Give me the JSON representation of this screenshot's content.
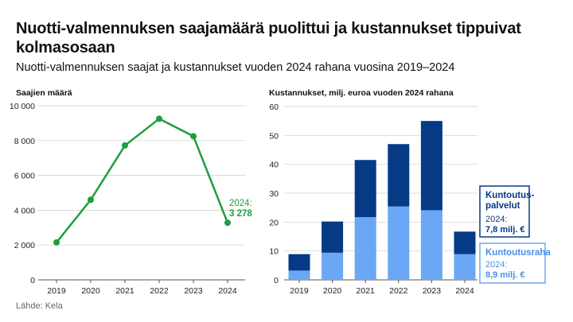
{
  "header": {
    "title": "Nuotti-valmennuksen saajamäärä puolittui ja kustannukset tippuivat kolmasosaan",
    "subtitle": "Nuotti-valmennuksen saajat ja kustannukset vuoden 2024 rahana vuosina 2019–2024"
  },
  "footer": {
    "source": "Lähde: Kela"
  },
  "colors": {
    "line": "#1f9e3e",
    "dark_bar": "#063a87",
    "light_bar": "#6aa7f5",
    "axis": "#555555",
    "grid": "#cccccc"
  },
  "chart_data": [
    {
      "type": "line",
      "ylabel": "Saajien määrä",
      "x": [
        "2019",
        "2020",
        "2021",
        "2022",
        "2023",
        "2024"
      ],
      "series": [
        {
          "values": [
            2150,
            4600,
            7720,
            9250,
            8250,
            3278
          ]
        }
      ],
      "ylim": [
        0,
        10000
      ],
      "yticks": [
        0,
        2000,
        4000,
        6000,
        8000,
        10000
      ],
      "ytick_labels": [
        "0",
        "2 000",
        "4 000",
        "6 000",
        "8 000",
        "10 000"
      ],
      "annotation": {
        "label": "2024:",
        "value": "3 278"
      },
      "grid": true
    },
    {
      "type": "bar",
      "stacked": true,
      "ylabel": "Kustannukset, milj. euroa vuoden 2024 rahana",
      "categories": [
        "2019",
        "2020",
        "2021",
        "2022",
        "2023",
        "2024"
      ],
      "series": [
        {
          "name": "Kuntoutusraha",
          "values": [
            3.2,
            9.4,
            21.7,
            25.4,
            24.1,
            8.9
          ]
        },
        {
          "name": "Kuntoutus-palvelut",
          "values": [
            5.7,
            10.8,
            19.8,
            21.6,
            30.9,
            7.8
          ]
        }
      ],
      "ylim": [
        0,
        60
      ],
      "yticks": [
        0,
        10,
        20,
        30,
        40,
        50,
        60
      ],
      "legend_boxes": [
        {
          "name_lines": [
            "Kuntoutus-",
            "palvelut"
          ],
          "label": "2024:",
          "value": "7,8 milj. €"
        },
        {
          "name_lines": [
            "Kuntoutusraha"
          ],
          "label": "2024:",
          "value": "8,9 milj. €"
        }
      ],
      "grid": true
    }
  ]
}
